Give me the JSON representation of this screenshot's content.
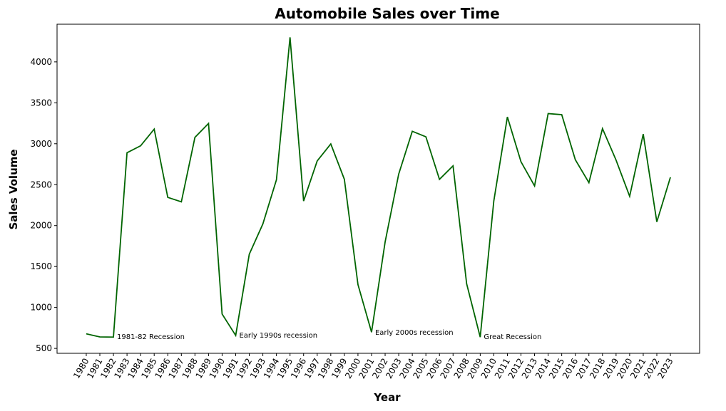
{
  "chart_data": {
    "type": "line",
    "title": "Automobile Sales over Time",
    "xlabel": "Year",
    "ylabel": "Sales Volume",
    "x": [
      1980,
      1981,
      1982,
      1983,
      1984,
      1985,
      1986,
      1987,
      1988,
      1989,
      1990,
      1991,
      1992,
      1993,
      1994,
      1995,
      1996,
      1997,
      1998,
      1999,
      2000,
      2001,
      2002,
      2003,
      2004,
      2005,
      2006,
      2007,
      2008,
      2009,
      2010,
      2011,
      2012,
      2013,
      2014,
      2015,
      2016,
      2017,
      2018,
      2019,
      2020,
      2021,
      2022,
      2023
    ],
    "x_tick_labels": [
      "1980",
      "1981",
      "1982",
      "1983",
      "1984",
      "1985",
      "1986",
      "1987",
      "1988",
      "1989",
      "1990",
      "1991",
      "1992",
      "1993",
      "1994",
      "1995",
      "1996",
      "1997",
      "1998",
      "1999",
      "2000",
      "2001",
      "2002",
      "2003",
      "2004",
      "2005",
      "2006",
      "2007",
      "2008",
      "2009",
      "2010",
      "2011",
      "2012",
      "2013",
      "2014",
      "2015",
      "2016",
      "2017",
      "2018",
      "2019",
      "2020",
      "2021",
      "2022",
      "2023"
    ],
    "series": [
      {
        "color": "#006400",
        "values": [
          678,
          640,
          638,
          2890,
          2975,
          3178,
          2345,
          2290,
          3078,
          3248,
          920,
          658,
          1650,
          2020,
          2560,
          4300,
          2300,
          2790,
          2998,
          2565,
          1280,
          698,
          1800,
          2630,
          3152,
          3085,
          2565,
          2730,
          1290,
          638,
          2300,
          3328,
          2780,
          2485,
          3368,
          3355,
          2805,
          2525,
          3185,
          2800,
          2358,
          3118,
          2045,
          2590
        ]
      }
    ],
    "ylim": [
      440,
      4460
    ],
    "yticks": [
      500,
      1000,
      1500,
      2000,
      2500,
      3000,
      3500,
      4000
    ],
    "ytick_labels": [
      "500",
      "1000",
      "1500",
      "2000",
      "2500",
      "3000",
      "3500",
      "4000"
    ],
    "annotations": [
      {
        "text": "1981-82 Recession",
        "x": 1982,
        "y": 650
      },
      {
        "text": "Early 1990s recession",
        "x": 1991,
        "y": 665
      },
      {
        "text": "Early 2000s recession",
        "x": 2001,
        "y": 700
      },
      {
        "text": "Great Recession",
        "x": 2009,
        "y": 650
      }
    ],
    "grid": false,
    "legend": "none"
  }
}
